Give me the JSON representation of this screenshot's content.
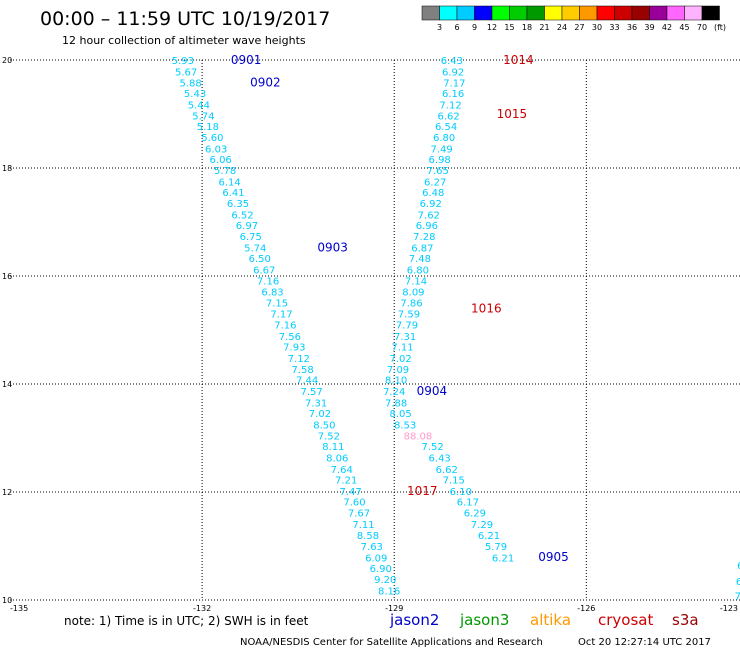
{
  "header": {
    "title": "00:00 – 11:59 UTC 10/19/2017",
    "subtitle": "12 hour collection of altimeter wave heights"
  },
  "legend": {
    "unit": "(ft)",
    "colors": [
      "#808080",
      "#00ffff",
      "#00ccff",
      "#0000ff",
      "#00ff00",
      "#00cc00",
      "#009900",
      "#ffff00",
      "#ffcc00",
      "#ff9900",
      "#ff0000",
      "#cc0000",
      "#990000",
      "#990099",
      "#ff66ff",
      "#ffb3ff",
      "#000000"
    ],
    "ticks": [
      "3",
      "6",
      "9",
      "12",
      "15",
      "18",
      "21",
      "24",
      "27",
      "30",
      "33",
      "36",
      "39",
      "42",
      "45",
      "70"
    ]
  },
  "footer": {
    "note": "note: 1) Time is in UTC; 2) SWH is in feet",
    "satellites": [
      {
        "name": "jason2",
        "color": "#0000cc"
      },
      {
        "name": "jason3",
        "color": "#009900"
      },
      {
        "name": "altika",
        "color": "#ff9900"
      },
      {
        "name": "cryosat",
        "color": "#cc0000"
      },
      {
        "name": "s3a",
        "color": "#990000"
      }
    ],
    "credit": "NOAA/NESDIS Center for Satellite Applications and Research",
    "timestamp": "Oct 20 12:27:14 UTC 2017"
  },
  "chart_data": {
    "type": "scatter",
    "xlim": [
      -135,
      -123.6
    ],
    "ylim": [
      10,
      20
    ],
    "x_ticks": [
      {
        "v": -135,
        "label": "-135"
      },
      {
        "v": -132,
        "label": "-132"
      },
      {
        "v": -129,
        "label": "-129"
      },
      {
        "v": -126,
        "label": "-126"
      },
      {
        "v": -123,
        "label": "-123"
      }
    ],
    "y_ticks": [
      {
        "v": 20,
        "label": "20"
      },
      {
        "v": 18,
        "label": "18"
      },
      {
        "v": 16,
        "label": "16"
      },
      {
        "v": 14,
        "label": "14"
      },
      {
        "v": 12,
        "label": "12"
      },
      {
        "v": 10,
        "label": "10"
      }
    ],
    "grid": true,
    "series": [
      {
        "color": "#00ccff",
        "points": [
          {
            "x": -132.3,
            "y": 20.0,
            "label": "5.93"
          },
          {
            "x": -132.25,
            "y": 19.79,
            "label": "5.67"
          },
          {
            "x": -132.18,
            "y": 19.58,
            "label": "5.88"
          },
          {
            "x": -132.11,
            "y": 19.39,
            "label": "5.43"
          },
          {
            "x": -132.05,
            "y": 19.18,
            "label": "5.44"
          },
          {
            "x": -131.98,
            "y": 18.97,
            "label": "5.74"
          },
          {
            "x": -131.91,
            "y": 18.78,
            "label": "5.18"
          },
          {
            "x": -131.84,
            "y": 18.57,
            "label": "5.60"
          },
          {
            "x": -131.78,
            "y": 18.36,
            "label": "6.03"
          },
          {
            "x": -131.71,
            "y": 18.17,
            "label": "6.06"
          },
          {
            "x": -131.64,
            "y": 17.96,
            "label": "5.78"
          },
          {
            "x": -131.57,
            "y": 17.75,
            "label": "6.14"
          },
          {
            "x": -131.51,
            "y": 17.56,
            "label": "6.41"
          },
          {
            "x": -131.44,
            "y": 17.35,
            "label": "6.35"
          },
          {
            "x": -131.37,
            "y": 17.14,
            "label": "6.52"
          },
          {
            "x": -131.3,
            "y": 16.94,
            "label": "6.97"
          },
          {
            "x": -131.24,
            "y": 16.74,
            "label": "6.75"
          },
          {
            "x": -131.17,
            "y": 16.53,
            "label": "5.74"
          },
          {
            "x": -131.1,
            "y": 16.33,
            "label": "6.50"
          },
          {
            "x": -131.03,
            "y": 16.12,
            "label": "6.67"
          },
          {
            "x": -130.97,
            "y": 15.92,
            "label": "7.16"
          },
          {
            "x": -130.9,
            "y": 15.71,
            "label": "6.83"
          },
          {
            "x": -130.83,
            "y": 15.51,
            "label": "7.15"
          },
          {
            "x": -130.76,
            "y": 15.31,
            "label": "7.17"
          },
          {
            "x": -130.7,
            "y": 15.1,
            "label": "7.16"
          },
          {
            "x": -130.63,
            "y": 14.89,
            "label": "7.56"
          },
          {
            "x": -130.56,
            "y": 14.69,
            "label": "7.93"
          },
          {
            "x": -130.49,
            "y": 14.48,
            "label": "7.12"
          },
          {
            "x": -130.43,
            "y": 14.28,
            "label": "7.58"
          },
          {
            "x": -130.36,
            "y": 14.08,
            "label": "7.44"
          },
          {
            "x": -130.29,
            "y": 13.87,
            "label": "7.57"
          },
          {
            "x": -130.22,
            "y": 13.66,
            "label": "7.31"
          },
          {
            "x": -130.16,
            "y": 13.46,
            "label": "7.02"
          },
          {
            "x": -130.09,
            "y": 13.25,
            "label": "8.50"
          },
          {
            "x": -130.02,
            "y": 13.05,
            "label": "7.52"
          },
          {
            "x": -129.95,
            "y": 12.85,
            "label": "8.11"
          },
          {
            "x": -129.89,
            "y": 12.64,
            "label": "8.06"
          },
          {
            "x": -129.82,
            "y": 12.43,
            "label": "7.64"
          },
          {
            "x": -129.75,
            "y": 12.23,
            "label": "7.21"
          },
          {
            "x": -129.68,
            "y": 12.02,
            "label": "7.47"
          },
          {
            "x": -129.62,
            "y": 11.82,
            "label": "7.60"
          },
          {
            "x": -129.55,
            "y": 11.62,
            "label": "7.67"
          },
          {
            "x": -129.48,
            "y": 11.41,
            "label": "7.11"
          },
          {
            "x": -129.41,
            "y": 11.2,
            "label": "8.58"
          },
          {
            "x": -129.35,
            "y": 11.0,
            "label": "7.63"
          },
          {
            "x": -129.28,
            "y": 10.79,
            "label": "6.09"
          },
          {
            "x": -129.21,
            "y": 10.59,
            "label": "6.90"
          },
          {
            "x": -129.14,
            "y": 10.39,
            "label": "9.20"
          },
          {
            "x": -129.08,
            "y": 10.18,
            "label": "8.16"
          }
        ]
      },
      {
        "color": "#00ccff",
        "points": [
          {
            "x": -128.1,
            "y": 20.0,
            "label": "6.43"
          },
          {
            "x": -128.08,
            "y": 19.79,
            "label": "6.92"
          },
          {
            "x": -128.06,
            "y": 19.58,
            "label": "7.17"
          },
          {
            "x": -128.08,
            "y": 19.39,
            "label": "6.16"
          },
          {
            "x": -128.12,
            "y": 19.18,
            "label": "7.12"
          },
          {
            "x": -128.15,
            "y": 18.97,
            "label": "6.62"
          },
          {
            "x": -128.19,
            "y": 18.78,
            "label": "6.54"
          },
          {
            "x": -128.22,
            "y": 18.57,
            "label": "6.80"
          },
          {
            "x": -128.26,
            "y": 18.36,
            "label": "7.49"
          },
          {
            "x": -128.29,
            "y": 18.17,
            "label": "6.98"
          },
          {
            "x": -128.32,
            "y": 17.96,
            "label": "7.65"
          },
          {
            "x": -128.36,
            "y": 17.75,
            "label": "6.27"
          },
          {
            "x": -128.39,
            "y": 17.56,
            "label": "6.48"
          },
          {
            "x": -128.43,
            "y": 17.35,
            "label": "6.92"
          },
          {
            "x": -128.46,
            "y": 17.14,
            "label": "7.62"
          },
          {
            "x": -128.49,
            "y": 16.94,
            "label": "6.96"
          },
          {
            "x": -128.53,
            "y": 16.74,
            "label": "7.28"
          },
          {
            "x": -128.56,
            "y": 16.53,
            "label": "6.87"
          },
          {
            "x": -128.6,
            "y": 16.33,
            "label": "7.48"
          },
          {
            "x": -128.63,
            "y": 16.12,
            "label": "6.80"
          },
          {
            "x": -128.66,
            "y": 15.92,
            "label": "7.14"
          },
          {
            "x": -128.7,
            "y": 15.71,
            "label": "8.09"
          },
          {
            "x": -128.73,
            "y": 15.51,
            "label": "7.86"
          },
          {
            "x": -128.77,
            "y": 15.31,
            "label": "7.59"
          },
          {
            "x": -128.8,
            "y": 15.1,
            "label": "7.79"
          },
          {
            "x": -128.83,
            "y": 14.89,
            "label": "7.31"
          },
          {
            "x": -128.87,
            "y": 14.69,
            "label": "7.11"
          },
          {
            "x": -128.9,
            "y": 14.48,
            "label": "7.02"
          },
          {
            "x": -128.94,
            "y": 14.28,
            "label": "7.09"
          },
          {
            "x": -128.97,
            "y": 14.08,
            "label": "8.10"
          },
          {
            "x": -129.0,
            "y": 13.87,
            "label": "7.24"
          },
          {
            "x": -128.97,
            "y": 13.66,
            "label": "7.88"
          },
          {
            "x": -128.9,
            "y": 13.46,
            "label": "8.05"
          },
          {
            "x": -128.83,
            "y": 13.25,
            "label": "8.53"
          },
          {
            "x": -128.63,
            "y": 13.05,
            "label": "88.08",
            "color": "#ff99cc"
          },
          {
            "x": -128.4,
            "y": 12.85,
            "label": "7.52"
          },
          {
            "x": -128.29,
            "y": 12.64,
            "label": "6.43"
          },
          {
            "x": -128.18,
            "y": 12.43,
            "label": "6.62"
          },
          {
            "x": -128.07,
            "y": 12.23,
            "label": "7.15"
          },
          {
            "x": -127.96,
            "y": 12.02,
            "label": "6.10"
          },
          {
            "x": -127.85,
            "y": 11.82,
            "label": "6.17"
          },
          {
            "x": -127.74,
            "y": 11.62,
            "label": "6.29"
          },
          {
            "x": -127.63,
            "y": 11.41,
            "label": "7.29"
          },
          {
            "x": -127.52,
            "y": 11.2,
            "label": "6.21"
          },
          {
            "x": -127.41,
            "y": 11.0,
            "label": "5.79"
          },
          {
            "x": -127.3,
            "y": 10.79,
            "label": "6.21"
          }
        ]
      },
      {
        "color": "#00ccff",
        "points": [
          {
            "x": -123.55,
            "y": 10.95,
            "label": "7"
          },
          {
            "x": -123.57,
            "y": 10.65,
            "label": "6."
          },
          {
            "x": -123.59,
            "y": 10.35,
            "label": "6."
          },
          {
            "x": -123.61,
            "y": 10.08,
            "label": "7."
          }
        ]
      }
    ],
    "annotations": [
      {
        "x": -131.55,
        "y": 20.0,
        "text": "0901",
        "color": "#0000cc"
      },
      {
        "x": -131.25,
        "y": 19.58,
        "text": "0902",
        "color": "#0000cc"
      },
      {
        "x": -130.2,
        "y": 16.53,
        "text": "0903",
        "color": "#0000cc"
      },
      {
        "x": -128.65,
        "y": 13.87,
        "text": "0904",
        "color": "#0000cc"
      },
      {
        "x": -126.75,
        "y": 10.8,
        "text": "0905",
        "color": "#0000cc"
      },
      {
        "x": -127.3,
        "y": 20.0,
        "text": "1014",
        "color": "#cc0000"
      },
      {
        "x": -127.4,
        "y": 19.0,
        "text": "1015",
        "color": "#cc0000"
      },
      {
        "x": -127.8,
        "y": 15.4,
        "text": "1016",
        "color": "#cc0000"
      },
      {
        "x": -128.8,
        "y": 12.02,
        "text": "1017",
        "color": "#cc0000"
      }
    ]
  }
}
